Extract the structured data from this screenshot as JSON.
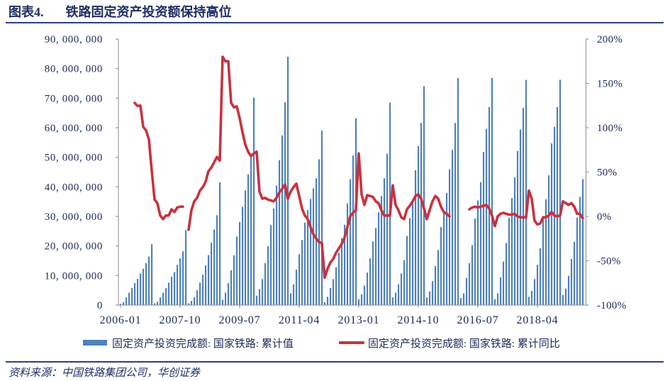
{
  "header": {
    "figure_label": "图表4.",
    "title": "铁路固定资产投资额保持高位"
  },
  "legend": {
    "items": [
      {
        "label": "固定资产投资完成额: 国家铁路: 累计值",
        "type": "bar",
        "color": "#4f81bd"
      },
      {
        "label": "固定资产投资完成额: 国家铁路: 累计同比",
        "type": "line",
        "color": "#c8323c"
      }
    ]
  },
  "footer": {
    "source": "资料来源：中国铁路集团公司，华创证券"
  },
  "colors": {
    "title": "#1f2d63",
    "rule": "#2e3f80",
    "axis": "#8c8c8c",
    "bar": "#4f81bd",
    "line": "#c8323c"
  },
  "chart_data": {
    "type": "bar",
    "title": "铁路固定资产投资额保持高位",
    "xlabel": "",
    "ylabel": "",
    "grid": false,
    "legend_position": "bottom",
    "x": [
      "2006-01",
      "2006-02",
      "2006-03",
      "2006-04",
      "2006-05",
      "2006-06",
      "2006-07",
      "2006-08",
      "2006-09",
      "2006-10",
      "2006-11",
      "2006-12",
      "2007-01",
      "2007-02",
      "2007-03",
      "2007-04",
      "2007-05",
      "2007-06",
      "2007-07",
      "2007-08",
      "2007-09",
      "2007-10",
      "2007-11",
      "2007-12",
      "2008-01",
      "2008-02",
      "2008-03",
      "2008-04",
      "2008-05",
      "2008-06",
      "2008-07",
      "2008-08",
      "2008-09",
      "2008-10",
      "2008-11",
      "2008-12",
      "2009-01",
      "2009-02",
      "2009-03",
      "2009-04",
      "2009-05",
      "2009-06",
      "2009-07",
      "2009-08",
      "2009-09",
      "2009-10",
      "2009-11",
      "2009-12",
      "2010-01",
      "2010-02",
      "2010-03",
      "2010-04",
      "2010-05",
      "2010-06",
      "2010-07",
      "2010-08",
      "2010-09",
      "2010-10",
      "2010-11",
      "2010-12",
      "2011-01",
      "2011-02",
      "2011-03",
      "2011-04",
      "2011-05",
      "2011-06",
      "2011-07",
      "2011-08",
      "2011-09",
      "2011-10",
      "2011-11",
      "2011-12",
      "2012-01",
      "2012-02",
      "2012-03",
      "2012-04",
      "2012-05",
      "2012-06",
      "2012-07",
      "2012-08",
      "2012-09",
      "2012-10",
      "2012-11",
      "2012-12",
      "2013-01",
      "2013-02",
      "2013-03",
      "2013-04",
      "2013-05",
      "2013-06",
      "2013-07",
      "2013-08",
      "2013-09",
      "2013-10",
      "2013-11",
      "2013-12",
      "2014-01",
      "2014-02",
      "2014-03",
      "2014-04",
      "2014-05",
      "2014-06",
      "2014-07",
      "2014-08",
      "2014-09",
      "2014-10",
      "2014-11",
      "2014-12",
      "2015-01",
      "2015-02",
      "2015-03",
      "2015-04",
      "2015-05",
      "2015-06",
      "2015-07",
      "2015-08",
      "2015-09",
      "2015-10",
      "2015-11",
      "2015-12",
      "2016-01",
      "2016-02",
      "2016-03",
      "2016-04",
      "2016-05",
      "2016-06",
      "2016-07",
      "2016-08",
      "2016-09",
      "2016-10",
      "2016-11",
      "2016-12",
      "2017-01",
      "2017-02",
      "2017-03",
      "2017-04",
      "2017-05",
      "2017-06",
      "2017-07",
      "2017-08",
      "2017-09",
      "2017-10",
      "2017-11",
      "2017-12",
      "2018-01",
      "2018-02",
      "2018-03",
      "2018-04",
      "2018-05",
      "2018-06",
      "2018-07",
      "2018-08",
      "2018-09",
      "2018-10",
      "2018-11",
      "2018-12",
      "2019-01",
      "2019-02",
      "2019-03",
      "2019-04",
      "2019-05",
      "2019-06",
      "2019-07",
      "2019-08"
    ],
    "x_tick_labels": [
      "2006-01",
      "2007-10",
      "2009-07",
      "2011-04",
      "2013-01",
      "2014-10",
      "2016-07",
      "2018-04"
    ],
    "x_tick_every": 21,
    "series": [
      {
        "name": "固定资产投资完成额: 国家铁路: 累计值",
        "type": "bar",
        "axis": "left",
        "color": "#4f81bd",
        "values": [
          400000,
          1000000,
          2600000,
          4200000,
          5800000,
          7500000,
          8900000,
          10600000,
          12300000,
          14200000,
          16400000,
          20600000,
          600000,
          1100000,
          2600000,
          4200000,
          5800000,
          7600000,
          9600000,
          11200000,
          13600000,
          15800000,
          18200000,
          25400000,
          600000,
          1400000,
          2700000,
          5000000,
          7600000,
          10300000,
          13400000,
          16900000,
          21100000,
          25600000,
          30400000,
          41500000,
          1800000,
          4200000,
          7400000,
          11800000,
          16800000,
          23200000,
          28100000,
          33200000,
          38800000,
          44200000,
          50000000,
          70200000,
          3200000,
          5400000,
          8800000,
          14200000,
          19900000,
          27100000,
          32700000,
          40400000,
          49000000,
          57400000,
          68600000,
          84000000,
          4000000,
          7000000,
          12000000,
          17200000,
          22000000,
          27900000,
          32100000,
          35900000,
          39500000,
          42900000,
          49300000,
          59000000,
          1000000,
          2800000,
          5800000,
          8800000,
          12800000,
          17700000,
          22600000,
          27200000,
          34400000,
          42600000,
          50600000,
          63200000,
          2000000,
          3600000,
          6600000,
          11000000,
          15800000,
          21500000,
          26100000,
          31400000,
          36900000,
          42900000,
          51200000,
          68500000,
          2600000,
          4200000,
          7000000,
          10700000,
          15200000,
          23400000,
          29400000,
          34800000,
          45600000,
          53800000,
          61600000,
          74000000,
          2600000,
          4600000,
          8100000,
          13200000,
          18600000,
          26400000,
          31400000,
          37900000,
          45900000,
          52500000,
          61600000,
          76800000,
          2400000,
          4000000,
          9200000,
          14200000,
          20300000,
          29300000,
          35400000,
          41600000,
          51800000,
          59600000,
          67000000,
          76800000,
          2000000,
          4000000,
          9400000,
          14700000,
          21000000,
          29500000,
          36200000,
          43200000,
          52100000,
          59400000,
          66700000,
          76200000,
          2800000,
          4800000,
          8800000,
          13600000,
          19200000,
          30100000,
          35800000,
          43900000,
          54700000,
          60300000,
          67000000,
          76200000,
          3400000,
          5600000,
          9900000,
          15600000,
          21400000,
          29600000,
          36600000,
          42600000
        ]
      },
      {
        "name": "固定资产投资完成额: 国家铁路: 累计同比",
        "type": "line",
        "axis": "right",
        "unit": "%",
        "color": "#c8323c",
        "values": [
          null,
          null,
          null,
          null,
          null,
          128,
          124.5,
          125,
          101,
          97,
          87,
          52,
          19,
          15,
          1,
          -3,
          1,
          1,
          8,
          5,
          10,
          11,
          11,
          null,
          -15,
          7,
          17,
          21,
          29,
          33,
          39,
          51,
          55,
          61,
          67,
          63,
          180,
          175,
          175,
          128,
          123,
          124,
          111,
          95,
          81,
          73,
          68,
          71,
          73,
          28,
          20,
          21,
          19,
          18,
          17,
          21,
          27,
          31,
          36,
          20,
          28,
          33,
          37,
          23,
          9,
          1,
          -3,
          -12,
          -20,
          -25,
          -29,
          -30,
          -69,
          -59,
          -52,
          -48,
          -41,
          -36,
          -31,
          -24,
          -12,
          0,
          4,
          7,
          71,
          25,
          13,
          24,
          23,
          22,
          17,
          15,
          7,
          1,
          1,
          1,
          35,
          13,
          7,
          -1,
          -3,
          8,
          12,
          17,
          23,
          25,
          20,
          9,
          -3,
          7,
          17,
          23,
          20,
          11,
          5,
          3,
          0,
          null,
          null,
          null,
          null,
          null,
          null,
          8,
          10,
          11,
          10,
          11,
          12,
          13,
          9,
          1,
          -11,
          0,
          3,
          4,
          3,
          2,
          2,
          3,
          0,
          -1,
          -1,
          -1,
          29,
          20,
          -5,
          -9,
          -8,
          -1,
          -1,
          1,
          5,
          1,
          0,
          1,
          17,
          15,
          13,
          15,
          11,
          3,
          3,
          -2
        ]
      }
    ],
    "y_left": {
      "ylim": [
        0,
        90000000
      ],
      "ticks": [
        0,
        10000000,
        20000000,
        30000000,
        40000000,
        50000000,
        60000000,
        70000000,
        80000000,
        90000000
      ],
      "tick_labels": [
        "0",
        "10, 000, 000",
        "20, 000, 000",
        "30, 000, 000",
        "40, 000, 000",
        "50, 000, 000",
        "60, 000, 000",
        "70, 000, 000",
        "80, 000, 000",
        "90, 000, 000"
      ]
    },
    "y_right": {
      "ylim": [
        -100,
        200
      ],
      "ticks": [
        -100,
        -50,
        0,
        50,
        100,
        150,
        200
      ],
      "tick_labels": [
        "-100%",
        "-50%",
        "0%",
        "50%",
        "100%",
        "150%",
        "200%"
      ]
    }
  }
}
